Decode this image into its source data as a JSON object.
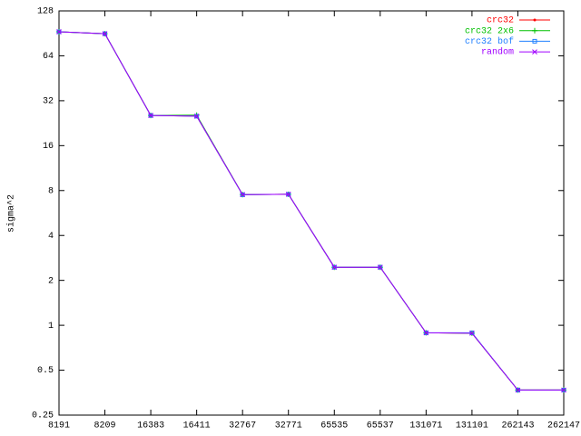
{
  "chart_data": {
    "type": "line",
    "y_label": "sigma^2",
    "categories": [
      "8191",
      "8209",
      "16383",
      "16411",
      "32767",
      "32771",
      "65535",
      "65537",
      "131071",
      "131101",
      "262143",
      "262147"
    ],
    "series": [
      {
        "name": "crc32",
        "color": "#ff0000",
        "marker": "dot",
        "values": [
          92.7,
          90,
          25.5,
          25.2,
          7.52,
          7.55,
          2.45,
          2.45,
          0.89,
          0.885,
          0.368,
          0.368
        ]
      },
      {
        "name": "crc32 2x6",
        "color": "#00c000",
        "marker": "plus",
        "values": [
          92.7,
          90,
          25.5,
          25.6,
          7.52,
          7.55,
          2.45,
          2.45,
          0.89,
          0.885,
          0.368,
          0.368
        ]
      },
      {
        "name": "crc32 bof",
        "color": "#2080ff",
        "marker": "square",
        "values": [
          92.7,
          90,
          25.5,
          25.2,
          7.5,
          7.55,
          2.45,
          2.45,
          0.89,
          0.89,
          0.368,
          0.368
        ]
      },
      {
        "name": "random",
        "color": "#a000ff",
        "marker": "cross",
        "values": [
          92.7,
          90,
          25.5,
          25.2,
          7.52,
          7.55,
          2.45,
          2.45,
          0.89,
          0.885,
          0.368,
          0.368
        ]
      }
    ],
    "ylim": [
      0.25,
      128
    ],
    "yticks": [
      0.25,
      0.5,
      1,
      2,
      4,
      8,
      16,
      32,
      64,
      128
    ],
    "log_scale_y": true,
    "log_base": 2,
    "legend": "top-right"
  }
}
